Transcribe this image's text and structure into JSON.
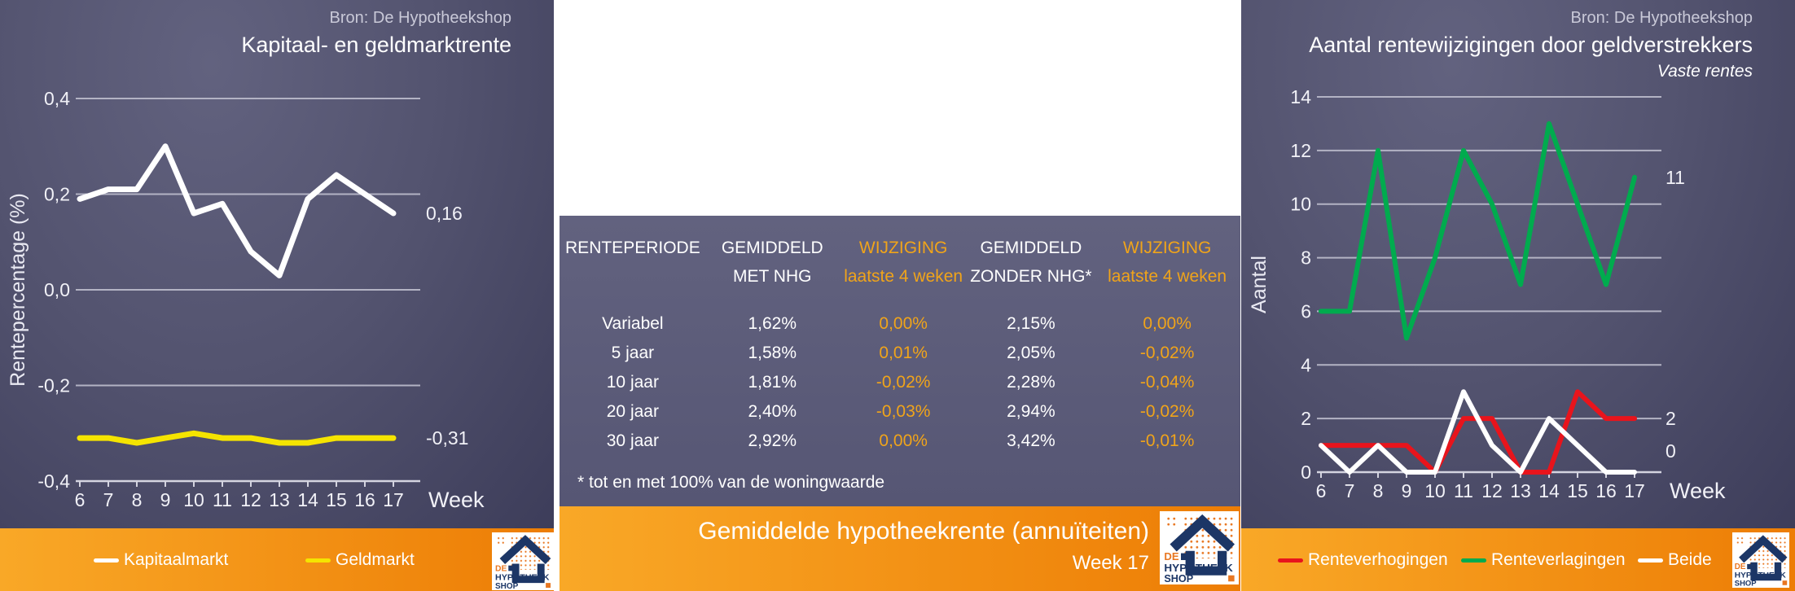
{
  "brand": {
    "source_label": "Bron: De Hypotheekshop",
    "logo": {
      "line1": "DE",
      "line2": "HYPOTHEEK",
      "line3": "SHOP"
    }
  },
  "colors": {
    "panel_purple": "#53536f",
    "table_purple": "#5d5d7b",
    "orange_start": "#f9a827",
    "orange_end": "#ed7d05",
    "gold_text": "#f0a41a",
    "kapitaalmarkt_line": "#ffffff",
    "geldmarkt_line": "#f5e400",
    "renteverhogingen_line": "#e8141c",
    "renteverlagingen_line": "#00ab4e",
    "beide_line": "#ffffff"
  },
  "table_panel": {
    "headers": [
      {
        "line1": "RENTEPERIODE",
        "line2": "",
        "style": "white"
      },
      {
        "line1": "GEMIDDELD",
        "line2": "MET NHG",
        "style": "white"
      },
      {
        "line1": "WIJZIGING",
        "line2": "laatste 4 weken",
        "style": "gold"
      },
      {
        "line1": "GEMIDDELD",
        "line2": "ZONDER NHG*",
        "style": "white"
      },
      {
        "line1": "WIJZIGING",
        "line2": "laatste 4 weken",
        "style": "gold"
      }
    ],
    "rows": [
      {
        "period": "Variabel",
        "met_nhg": "1,62%",
        "wijziging_met": "0,00%",
        "zonder_nhg": "2,15%",
        "wijziging_zonder": "0,00%"
      },
      {
        "period": "5 jaar",
        "met_nhg": "1,58%",
        "wijziging_met": "0,01%",
        "zonder_nhg": "2,05%",
        "wijziging_zonder": "-0,02%"
      },
      {
        "period": "10 jaar",
        "met_nhg": "1,81%",
        "wijziging_met": "-0,02%",
        "zonder_nhg": "2,28%",
        "wijziging_zonder": "-0,04%"
      },
      {
        "period": "20 jaar",
        "met_nhg": "2,40%",
        "wijziging_met": "-0,03%",
        "zonder_nhg": "2,94%",
        "wijziging_zonder": "-0,02%"
      },
      {
        "period": "30 jaar",
        "met_nhg": "2,92%",
        "wijziging_met": "0,00%",
        "zonder_nhg": "3,42%",
        "wijziging_zonder": "-0,01%"
      }
    ],
    "footnote": "* tot en met 100% van de woningwaarde",
    "title": "Gemiddelde hypotheekrente (annuïteiten)",
    "week_label": "Week 17"
  },
  "chart_data": [
    {
      "type": "line",
      "title": "Kapitaal- en geldmarktrente",
      "source": "Bron: De Hypotheekshop",
      "xlabel": "Week",
      "ylabel": "Rentepercentage (%)",
      "x": [
        6,
        7,
        8,
        9,
        10,
        11,
        12,
        13,
        14,
        15,
        16,
        17
      ],
      "ylim": [
        -0.4,
        0.4
      ],
      "grid": true,
      "legend_position": "bottom",
      "y_ticks": [
        {
          "v": 0.4,
          "label": "0,4"
        },
        {
          "v": 0.2,
          "label": "0,2"
        },
        {
          "v": 0.0,
          "label": "0,0"
        },
        {
          "v": -0.2,
          "label": "-0,2"
        },
        {
          "v": -0.4,
          "label": "-0,4"
        }
      ],
      "series": [
        {
          "name": "Kapitaalmarkt",
          "color": "#ffffff",
          "values": [
            0.19,
            0.21,
            0.21,
            0.3,
            0.16,
            0.18,
            0.08,
            0.03,
            0.19,
            0.24,
            0.2,
            0.16
          ],
          "end_label": "0,16"
        },
        {
          "name": "Geldmarkt",
          "color": "#f5e400",
          "values": [
            -0.31,
            -0.31,
            -0.32,
            -0.31,
            -0.3,
            -0.31,
            -0.31,
            -0.32,
            -0.32,
            -0.31,
            -0.31,
            -0.31
          ],
          "end_label": "-0,31"
        }
      ]
    },
    {
      "type": "line",
      "title": "Aantal rentewijzigingen door geldverstrekkers",
      "subtitle": "Vaste rentes",
      "source": "Bron: De Hypotheekshop",
      "xlabel": "Week",
      "ylabel": "Aantal",
      "x": [
        6,
        7,
        8,
        9,
        10,
        11,
        12,
        13,
        14,
        15,
        16,
        17
      ],
      "ylim": [
        0,
        14
      ],
      "grid": true,
      "legend_position": "bottom",
      "y_ticks": [
        {
          "v": 14,
          "label": "14"
        },
        {
          "v": 12,
          "label": "12"
        },
        {
          "v": 10,
          "label": "10"
        },
        {
          "v": 8,
          "label": "8"
        },
        {
          "v": 6,
          "label": "6"
        },
        {
          "v": 4,
          "label": "4"
        },
        {
          "v": 2,
          "label": "2"
        },
        {
          "v": 0,
          "label": "0"
        }
      ],
      "series": [
        {
          "name": "Renteverhogingen",
          "color": "#e8141c",
          "values": [
            1,
            1,
            1,
            1,
            0,
            2,
            2,
            0,
            0,
            3,
            2,
            2
          ],
          "end_label": "2"
        },
        {
          "name": "Renteverlagingen",
          "color": "#00ab4e",
          "values": [
            6,
            6,
            12,
            5,
            8,
            12,
            10,
            7,
            13,
            10,
            7,
            11
          ],
          "end_label": "11"
        },
        {
          "name": "Beide",
          "color": "#ffffff",
          "values": [
            1,
            0,
            1,
            0,
            0,
            3,
            1,
            0,
            2,
            1,
            0,
            0
          ],
          "end_label": "0"
        }
      ]
    }
  ]
}
